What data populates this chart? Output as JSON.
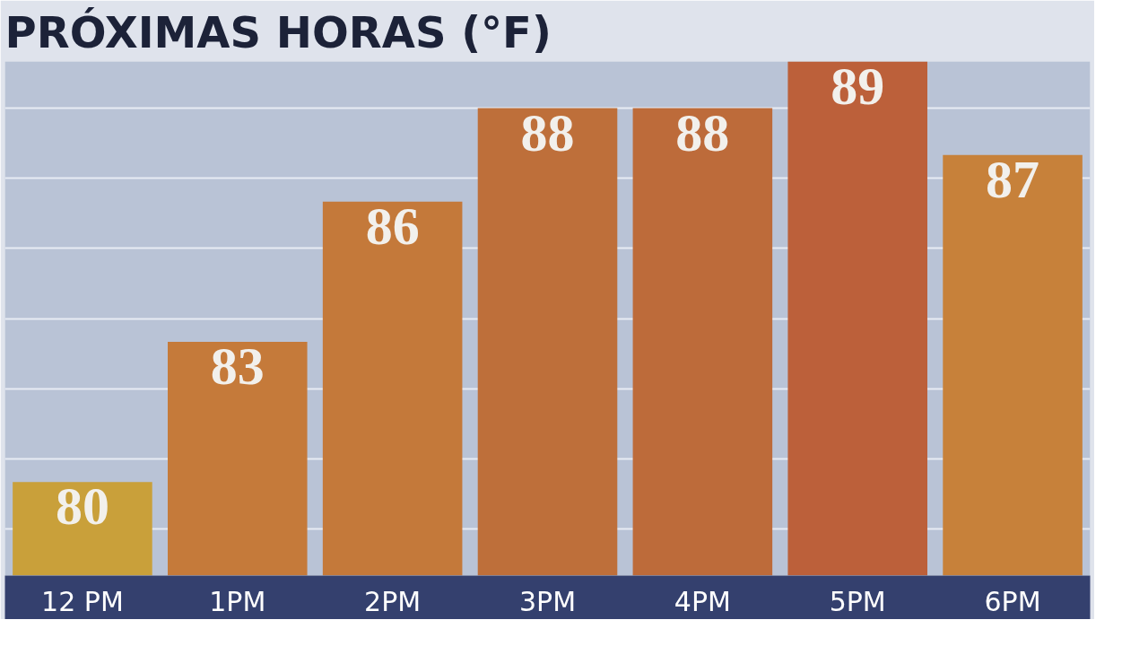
{
  "chart_data": {
    "type": "bar",
    "title": "PRÓXIMAS HORAS (°F)",
    "categories": [
      "12 PM",
      "1PM",
      "2PM",
      "3PM",
      "4PM",
      "5PM",
      "6PM"
    ],
    "values": [
      80,
      83,
      86,
      88,
      88,
      89,
      87
    ],
    "colors": [
      "#c9a03a",
      "#c57a3a",
      "#c4793a",
      "#be6f3a",
      "#bd6b3a",
      "#bc603a",
      "#c7813a"
    ],
    "data_labels": true,
    "ylim": [
      78,
      89
    ],
    "yticks": [
      {
        "value": 79,
        "label": null
      },
      {
        "value": 80.5,
        "label": null
      },
      {
        "value": 82,
        "label": null
      },
      {
        "value": 83.5,
        "label": null
      },
      {
        "value": 85,
        "label": null
      },
      {
        "value": 86.5,
        "label": null
      },
      {
        "value": 88,
        "label": null
      }
    ],
    "grid": "y",
    "tick_labels": "x"
  }
}
